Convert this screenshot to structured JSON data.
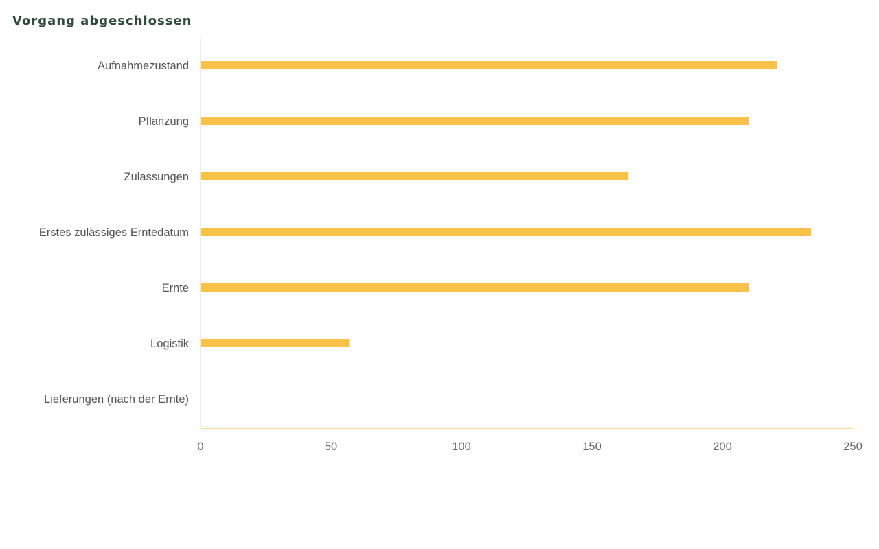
{
  "chart_data": {
    "type": "bar",
    "orientation": "horizontal",
    "title": "Vorgang abgeschlossen",
    "categories": [
      "Aufnahmezustand",
      "Pflanzung",
      "Zulassungen",
      "Erstes zulässiges Erntedatum",
      "Ernte",
      "Logistik",
      "Lieferungen (nach der Ernte)"
    ],
    "values": [
      221,
      210,
      164,
      234,
      210,
      57,
      0
    ],
    "xlim": [
      0,
      250
    ],
    "xticks": [
      0,
      50,
      100,
      150,
      200,
      250
    ],
    "grid": false,
    "bar_color": "#fbc24a",
    "axis_color": "#f7dc92",
    "left_axis_color": "#e5e5e5"
  }
}
